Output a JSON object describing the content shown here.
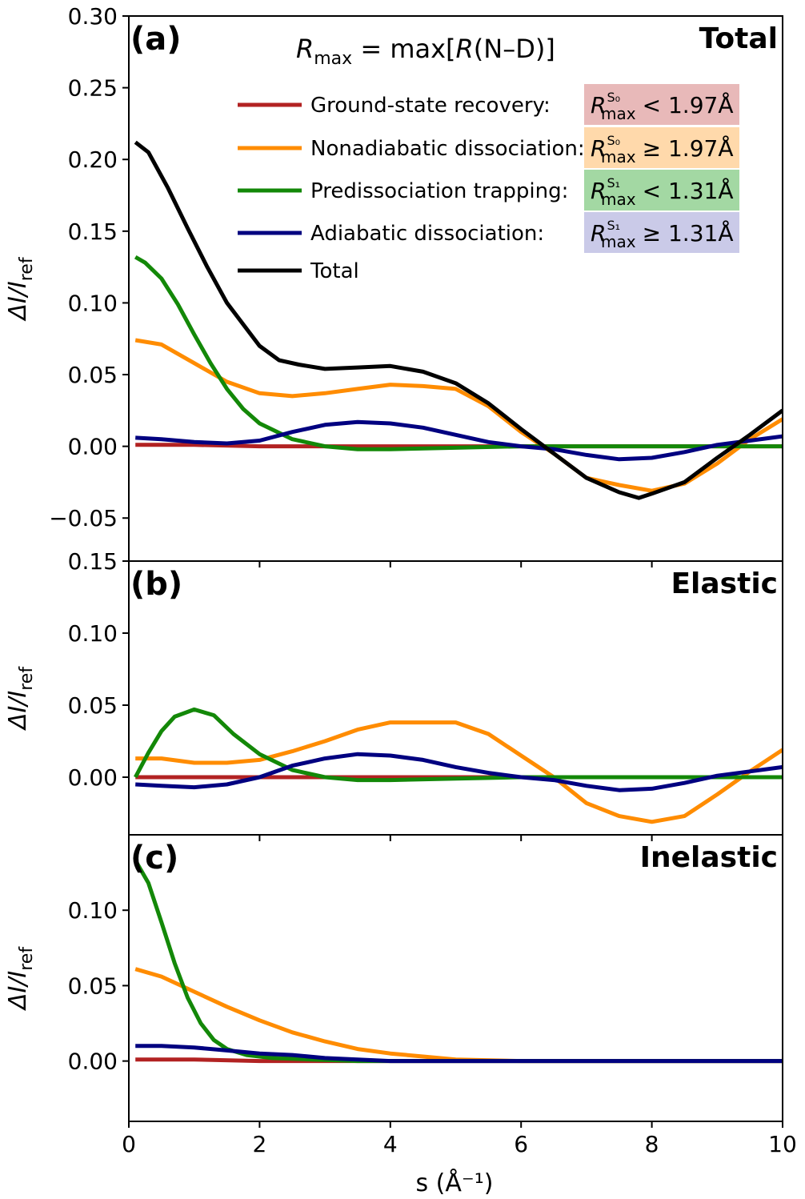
{
  "figure": {
    "xlabel": "s (Å⁻¹)",
    "ylabel": "ΔI/I",
    "ylabel_sub": "ref",
    "formula": {
      "lhs": "R",
      "lhs_sub": "max",
      "rhs": " = max[",
      "rhs_R": "R",
      "rhs_tail": "(N–D)]"
    }
  },
  "legend": [
    {
      "label": "Ground-state recovery:",
      "color": "#b22222",
      "cond_state": "S₀",
      "cond_op": "< 1.97Å",
      "box": "#e8b9b9"
    },
    {
      "label": "Nonadiabatic dissociation:",
      "color": "#ff8c00",
      "cond_state": "S₀",
      "cond_op": "≥ 1.97Å",
      "box": "#ffd9ab"
    },
    {
      "label": "Predissociation trapping:",
      "color": "#138808",
      "cond_state": "S₁",
      "cond_op": "< 1.31Å",
      "box": "#a3d8a3"
    },
    {
      "label": "Adiabatic dissociation:",
      "color": "#000080",
      "cond_state": "S₁",
      "cond_op": "≥ 1.31Å",
      "box": "#cacae8"
    },
    {
      "label": "Total",
      "color": "#000000"
    }
  ],
  "chart_data": [
    {
      "type": "line",
      "panel": "(a)",
      "title": "Total",
      "xlim": [
        0,
        10
      ],
      "ylim": [
        -0.08,
        0.3
      ],
      "xticks": [
        0,
        2,
        4,
        6,
        8,
        10
      ],
      "yticks": [
        -0.05,
        0.0,
        0.05,
        0.1,
        0.15,
        0.2,
        0.25,
        0.3
      ],
      "ytick_labels": [
        "−0.05",
        "0.00",
        "0.05",
        "0.10",
        "0.15",
        "0.20",
        "0.25",
        "0.30"
      ],
      "series": [
        {
          "name": "Ground-state recovery",
          "color": "#b22222",
          "x": [
            0.1,
            1,
            2,
            4,
            6,
            8,
            10
          ],
          "y": [
            0.001,
            0.001,
            0.0,
            0.0,
            0.0,
            0.0,
            0.0
          ]
        },
        {
          "name": "Nonadiabatic dissociation",
          "color": "#ff8c00",
          "x": [
            0.1,
            0.5,
            1,
            1.5,
            2,
            2.5,
            3,
            3.5,
            4,
            4.5,
            5,
            5.5,
            6,
            6.5,
            7,
            7.5,
            8,
            8.5,
            9,
            9.5,
            10
          ],
          "y": [
            0.074,
            0.071,
            0.058,
            0.045,
            0.037,
            0.035,
            0.037,
            0.04,
            0.043,
            0.042,
            0.04,
            0.028,
            0.01,
            -0.005,
            -0.022,
            -0.027,
            -0.031,
            -0.026,
            -0.012,
            0.005,
            0.019
          ]
        },
        {
          "name": "Predissociation trapping",
          "color": "#138808",
          "x": [
            0.1,
            0.25,
            0.5,
            0.75,
            1,
            1.25,
            1.5,
            1.75,
            2,
            2.5,
            3,
            3.5,
            4,
            5,
            6,
            7,
            8,
            9,
            10
          ],
          "y": [
            0.132,
            0.128,
            0.117,
            0.099,
            0.078,
            0.058,
            0.04,
            0.026,
            0.016,
            0.005,
            0.0,
            -0.002,
            -0.002,
            -0.001,
            0.0,
            0.0,
            0.0,
            0.0,
            0.0
          ]
        },
        {
          "name": "Adiabatic dissociation",
          "color": "#000080",
          "x": [
            0.1,
            0.5,
            1,
            1.5,
            2,
            2.5,
            3,
            3.5,
            4,
            4.5,
            5,
            5.5,
            6,
            6.5,
            7,
            7.5,
            8,
            8.5,
            9,
            9.5,
            10
          ],
          "y": [
            0.006,
            0.005,
            0.003,
            0.002,
            0.004,
            0.01,
            0.015,
            0.017,
            0.016,
            0.013,
            0.008,
            0.003,
            0.0,
            -0.002,
            -0.006,
            -0.009,
            -0.008,
            -0.004,
            0.001,
            0.004,
            0.007
          ]
        },
        {
          "name": "Total",
          "color": "#000000",
          "x": [
            0.1,
            0.3,
            0.6,
            0.9,
            1.2,
            1.5,
            1.8,
            2.0,
            2.3,
            2.6,
            3.0,
            3.5,
            4.0,
            4.5,
            5.0,
            5.5,
            6.0,
            6.5,
            7.0,
            7.5,
            7.8,
            8.0,
            8.5,
            9.0,
            9.5,
            10.0
          ],
          "y": [
            0.212,
            0.205,
            0.18,
            0.152,
            0.125,
            0.1,
            0.082,
            0.07,
            0.06,
            0.057,
            0.054,
            0.055,
            0.056,
            0.052,
            0.044,
            0.03,
            0.012,
            -0.005,
            -0.022,
            -0.032,
            -0.036,
            -0.033,
            -0.025,
            -0.008,
            0.008,
            0.025
          ]
        }
      ]
    },
    {
      "type": "line",
      "panel": "(b)",
      "title": "Elastic",
      "xlim": [
        0,
        10
      ],
      "ylim": [
        -0.04,
        0.15
      ],
      "xticks": [
        0,
        2,
        4,
        6,
        8,
        10
      ],
      "yticks": [
        0.0,
        0.05,
        0.1,
        0.15
      ],
      "ytick_labels": [
        "0.00",
        "0.05",
        "0.10",
        "0.15"
      ],
      "series": [
        {
          "name": "Ground-state recovery",
          "color": "#b22222",
          "x": [
            0.1,
            1,
            2,
            4,
            6,
            8,
            10
          ],
          "y": [
            0.0,
            0.0,
            0.0,
            0.0,
            0.0,
            0.0,
            0.0
          ]
        },
        {
          "name": "Nonadiabatic dissociation",
          "color": "#ff8c00",
          "x": [
            0.1,
            0.5,
            1,
            1.5,
            2,
            2.5,
            3,
            3.5,
            4,
            4.5,
            5,
            5.5,
            6,
            6.5,
            7,
            7.5,
            8,
            8.5,
            9,
            9.5,
            10
          ],
          "y": [
            0.013,
            0.013,
            0.01,
            0.01,
            0.012,
            0.018,
            0.025,
            0.033,
            0.038,
            0.038,
            0.038,
            0.03,
            0.015,
            0.0,
            -0.018,
            -0.027,
            -0.031,
            -0.027,
            -0.012,
            0.004,
            0.019
          ]
        },
        {
          "name": "Predissociation trapping",
          "color": "#138808",
          "x": [
            0.1,
            0.3,
            0.5,
            0.7,
            1.0,
            1.3,
            1.6,
            2.0,
            2.5,
            3.0,
            3.5,
            4.0,
            5.0,
            6.0,
            8.0,
            10.0
          ],
          "y": [
            0.0,
            0.017,
            0.032,
            0.042,
            0.047,
            0.043,
            0.03,
            0.016,
            0.005,
            0.0,
            -0.002,
            -0.002,
            -0.001,
            0.0,
            0.0,
            0.0
          ]
        },
        {
          "name": "Adiabatic dissociation",
          "color": "#000080",
          "x": [
            0.1,
            0.5,
            1,
            1.5,
            2,
            2.5,
            3,
            3.5,
            4,
            4.5,
            5,
            5.5,
            6,
            6.5,
            7,
            7.5,
            8,
            8.5,
            9,
            9.5,
            10
          ],
          "y": [
            -0.005,
            -0.006,
            -0.007,
            -0.005,
            0.0,
            0.008,
            0.013,
            0.016,
            0.015,
            0.012,
            0.007,
            0.003,
            0.0,
            -0.002,
            -0.006,
            -0.009,
            -0.008,
            -0.004,
            0.001,
            0.004,
            0.007
          ]
        }
      ]
    },
    {
      "type": "line",
      "panel": "(c)",
      "title": "Inelastic",
      "xlim": [
        0,
        10
      ],
      "ylim": [
        -0.04,
        0.15
      ],
      "xticks": [
        0,
        2,
        4,
        6,
        8,
        10
      ],
      "xtick_labels": [
        "0",
        "2",
        "4",
        "6",
        "8",
        "10"
      ],
      "yticks": [
        0.0,
        0.05,
        0.1
      ],
      "ytick_labels": [
        "0.00",
        "0.05",
        "0.10"
      ],
      "series": [
        {
          "name": "Ground-state recovery",
          "color": "#b22222",
          "x": [
            0.1,
            1,
            2,
            4,
            6,
            8,
            10
          ],
          "y": [
            0.001,
            0.001,
            0.0,
            0.0,
            0.0,
            0.0,
            0.0
          ]
        },
        {
          "name": "Nonadiabatic dissociation",
          "color": "#ff8c00",
          "x": [
            0.1,
            0.5,
            1.0,
            1.5,
            2.0,
            2.5,
            3.0,
            3.5,
            4.0,
            4.5,
            5.0,
            6.0,
            7.0,
            8.0,
            10.0
          ],
          "y": [
            0.061,
            0.056,
            0.046,
            0.036,
            0.027,
            0.019,
            0.013,
            0.008,
            0.005,
            0.003,
            0.001,
            0.0,
            0.0,
            0.0,
            0.0
          ]
        },
        {
          "name": "Predissociation trapping",
          "color": "#138808",
          "x": [
            0.1,
            0.3,
            0.5,
            0.7,
            0.9,
            1.1,
            1.3,
            1.5,
            1.8,
            2.2,
            2.8,
            3.5,
            4.5,
            6.0,
            10.0
          ],
          "y": [
            0.133,
            0.118,
            0.092,
            0.065,
            0.042,
            0.025,
            0.014,
            0.008,
            0.004,
            0.002,
            0.001,
            0.0,
            0.0,
            0.0,
            0.0
          ]
        },
        {
          "name": "Adiabatic dissociation",
          "color": "#000080",
          "x": [
            0.1,
            0.5,
            1.0,
            1.5,
            2.0,
            2.5,
            3.0,
            3.5,
            4.0,
            5.0,
            6.0,
            8.0,
            10.0
          ],
          "y": [
            0.01,
            0.01,
            0.009,
            0.007,
            0.005,
            0.004,
            0.002,
            0.001,
            0.0,
            0.0,
            0.0,
            0.0,
            0.0
          ]
        }
      ]
    }
  ]
}
